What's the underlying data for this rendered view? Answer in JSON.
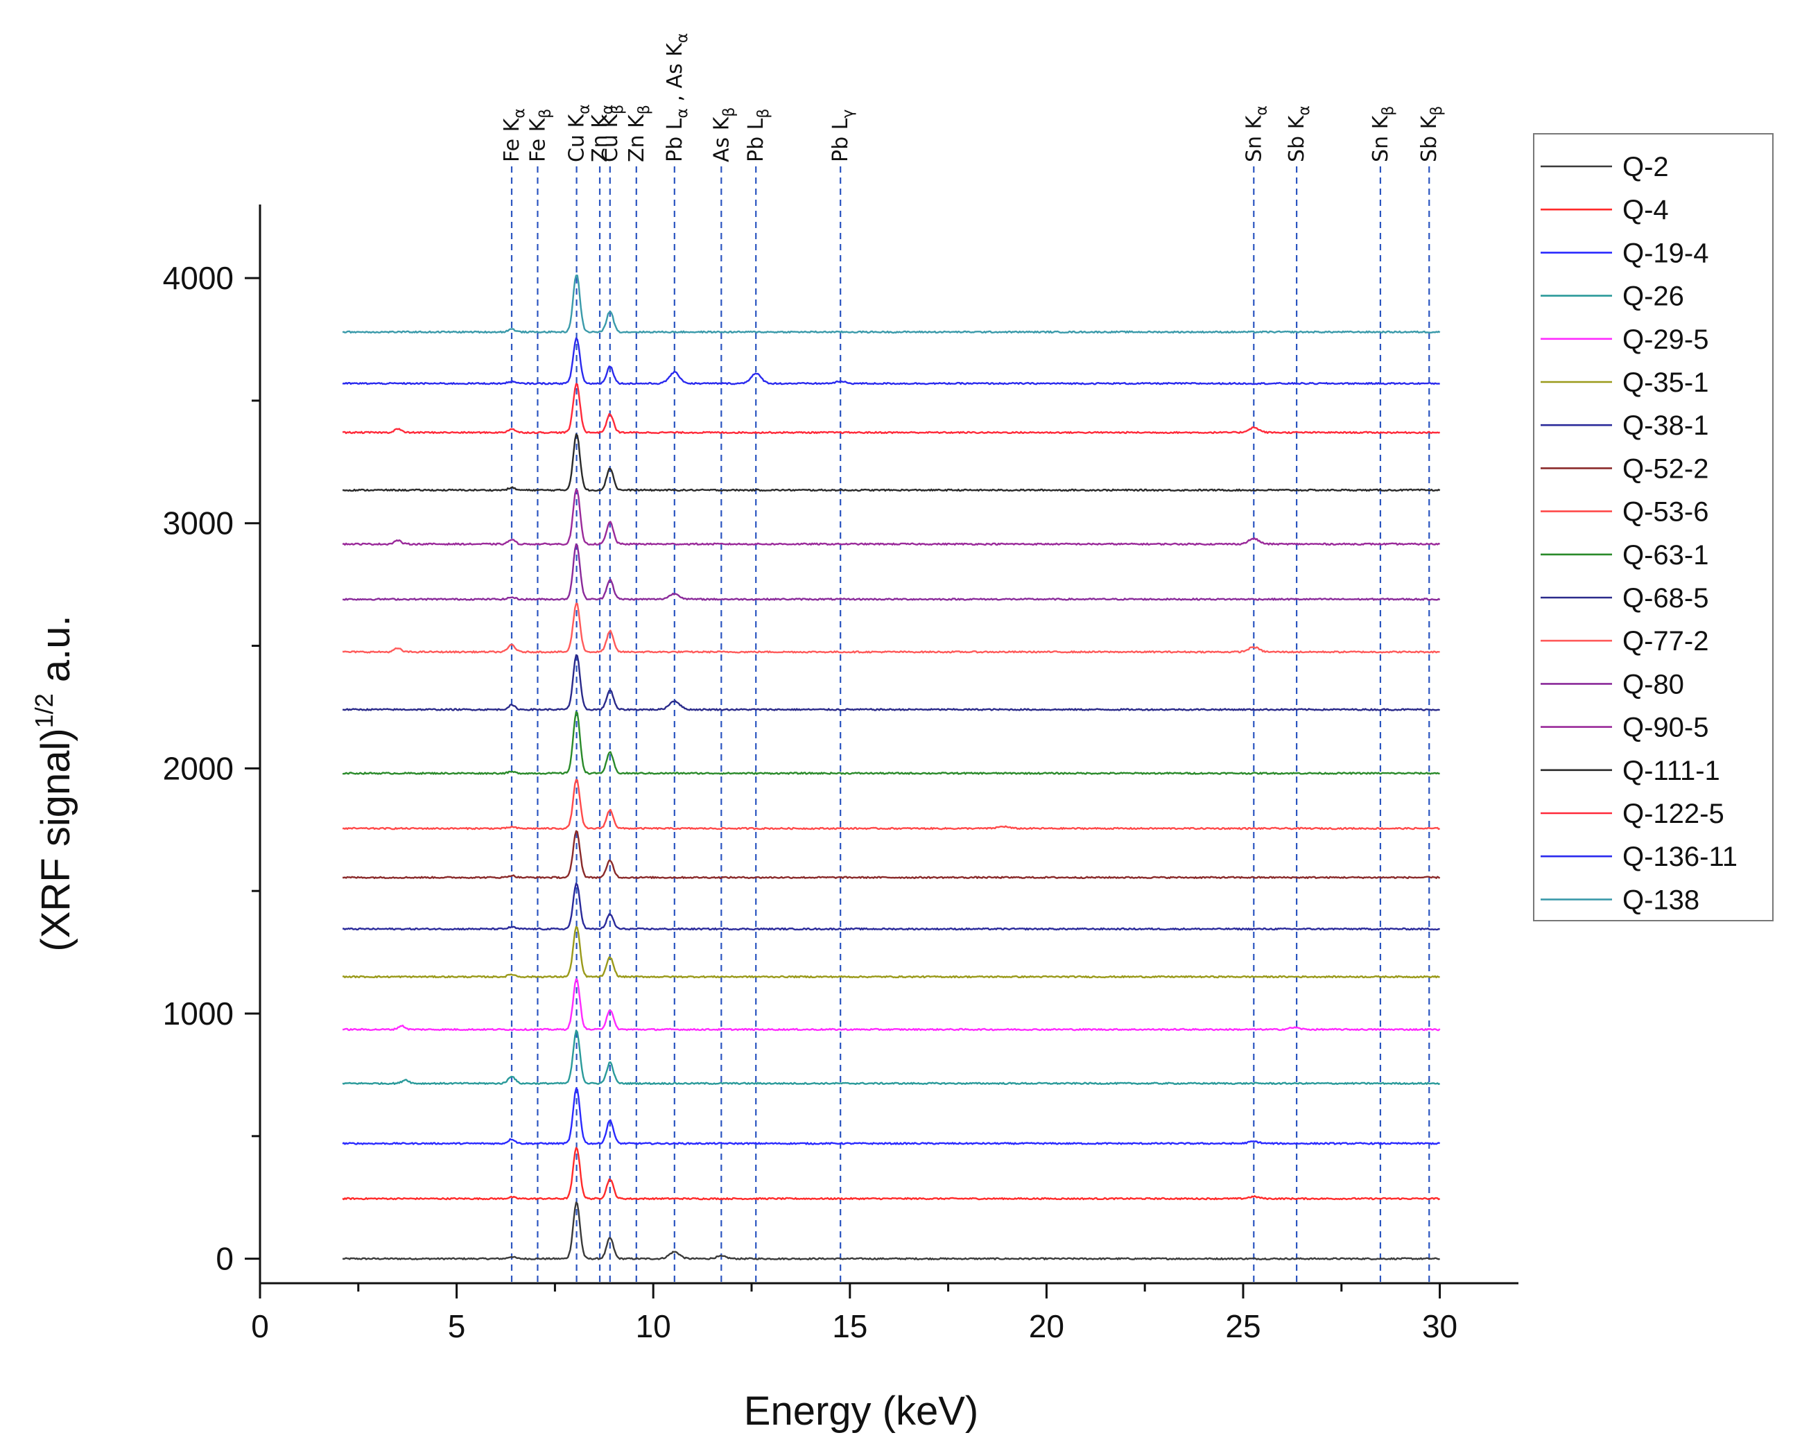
{
  "chart_data": {
    "type": "line",
    "title": "",
    "xlabel": "Energy (keV)",
    "ylabel_prefix": "(XRF signal)",
    "ylabel_sup": "1/2",
    "ylabel_suffix": " a.u.",
    "xlim": [
      0,
      32
    ],
    "ylim": [
      -100,
      4300
    ],
    "x_ticks": [
      0,
      5,
      10,
      15,
      20,
      25,
      30
    ],
    "x_minor_step": 2.5,
    "y_ticks": [
      0,
      1000,
      2000,
      3000,
      4000
    ],
    "y_minor_step": 500,
    "legend_position": "top-right",
    "x_range": [
      2.1,
      30.0
    ],
    "peak_lines": [
      {
        "energy": 6.4,
        "label": "Fe K",
        "sub": "α"
      },
      {
        "energy": 7.06,
        "label": "Fe K",
        "sub": "β"
      },
      {
        "energy": 8.05,
        "label": "Cu K",
        "sub": "α"
      },
      {
        "energy": 8.64,
        "label": "Zn K",
        "sub": "α"
      },
      {
        "energy": 8.9,
        "label": "Cu K",
        "sub": "β"
      },
      {
        "energy": 9.57,
        "label": "Zn K",
        "sub": "β"
      },
      {
        "energy": 10.54,
        "label": "Pb L",
        "sub": "α",
        "extra": " , As K",
        "extra_sub": "α"
      },
      {
        "energy": 11.73,
        "label": "As K",
        "sub": "β"
      },
      {
        "energy": 12.61,
        "label": "Pb L",
        "sub": "β"
      },
      {
        "energy": 14.76,
        "label": "Pb L",
        "sub": "γ"
      },
      {
        "energy": 25.27,
        "label": "Sn K",
        "sub": "α"
      },
      {
        "energy": 26.36,
        "label": "Sb K",
        "sub": "α"
      },
      {
        "energy": 28.49,
        "label": "Sn K",
        "sub": "β"
      },
      {
        "energy": 29.73,
        "label": "Sb K",
        "sub": "β"
      }
    ],
    "series": [
      {
        "name": "Q-2",
        "color": "#3a3a3a",
        "baseline": 0,
        "peaks": [
          [
            8.05,
            230
          ],
          [
            8.9,
            85
          ],
          [
            10.54,
            28
          ],
          [
            11.73,
            10
          ],
          [
            6.4,
            8
          ]
        ]
      },
      {
        "name": "Q-4",
        "color": "#ff2a2a",
        "baseline": 245,
        "peaks": [
          [
            8.05,
            210
          ],
          [
            8.9,
            80
          ],
          [
            6.4,
            6
          ],
          [
            25.27,
            8
          ]
        ]
      },
      {
        "name": "Q-19-4",
        "color": "#2a2aff",
        "baseline": 470,
        "peaks": [
          [
            8.05,
            225
          ],
          [
            8.9,
            95
          ],
          [
            6.4,
            18
          ],
          [
            25.27,
            8
          ]
        ]
      },
      {
        "name": "Q-26",
        "color": "#2a9a9a",
        "baseline": 715,
        "peaks": [
          [
            8.05,
            215
          ],
          [
            8.9,
            85
          ],
          [
            6.4,
            30
          ],
          [
            3.7,
            15
          ]
        ]
      },
      {
        "name": "Q-29-5",
        "color": "#ff2aff",
        "baseline": 935,
        "peaks": [
          [
            8.05,
            205
          ],
          [
            8.9,
            80
          ],
          [
            3.6,
            15
          ],
          [
            26.3,
            8
          ]
        ]
      },
      {
        "name": "Q-35-1",
        "color": "#9a9a1a",
        "baseline": 1150,
        "peaks": [
          [
            8.05,
            205
          ],
          [
            8.9,
            80
          ],
          [
            6.4,
            10
          ]
        ]
      },
      {
        "name": "Q-38-1",
        "color": "#2a2a9a",
        "baseline": 1345,
        "peaks": [
          [
            8.05,
            185
          ],
          [
            8.9,
            60
          ],
          [
            6.4,
            8
          ]
        ]
      },
      {
        "name": "Q-52-2",
        "color": "#8a2a2a",
        "baseline": 1555,
        "peaks": [
          [
            8.05,
            190
          ],
          [
            8.9,
            70
          ],
          [
            6.4,
            8
          ]
        ]
      },
      {
        "name": "Q-53-6",
        "color": "#ff4a4a",
        "baseline": 1755,
        "peaks": [
          [
            8.05,
            200
          ],
          [
            8.9,
            75
          ],
          [
            6.4,
            6
          ],
          [
            18.9,
            8
          ]
        ]
      },
      {
        "name": "Q-63-1",
        "color": "#2a8a2a",
        "baseline": 1980,
        "peaks": [
          [
            8.05,
            250
          ],
          [
            8.9,
            85
          ],
          [
            6.4,
            6
          ]
        ]
      },
      {
        "name": "Q-68-5",
        "color": "#2a2a8a",
        "baseline": 2240,
        "peaks": [
          [
            8.05,
            225
          ],
          [
            8.9,
            80
          ],
          [
            10.54,
            35
          ],
          [
            6.4,
            18
          ]
        ]
      },
      {
        "name": "Q-77-2",
        "color": "#ff5a5a",
        "baseline": 2475,
        "peaks": [
          [
            8.05,
            200
          ],
          [
            8.9,
            85
          ],
          [
            6.4,
            30
          ],
          [
            3.5,
            15
          ],
          [
            25.27,
            20
          ]
        ]
      },
      {
        "name": "Q-80",
        "color": "#8a2a9a",
        "baseline": 2690,
        "peaks": [
          [
            8.05,
            225
          ],
          [
            8.9,
            80
          ],
          [
            10.54,
            22
          ],
          [
            6.4,
            8
          ]
        ]
      },
      {
        "name": "Q-90-5",
        "color": "#9a2a9a",
        "baseline": 2915,
        "peaks": [
          [
            8.05,
            225
          ],
          [
            8.9,
            90
          ],
          [
            6.4,
            18
          ],
          [
            3.5,
            15
          ],
          [
            25.27,
            22
          ]
        ]
      },
      {
        "name": "Q-111-1",
        "color": "#2a2a2a",
        "baseline": 3135,
        "peaks": [
          [
            8.05,
            230
          ],
          [
            8.9,
            90
          ],
          [
            6.4,
            10
          ]
        ]
      },
      {
        "name": "Q-122-5",
        "color": "#ff2a3a",
        "baseline": 3370,
        "peaks": [
          [
            8.05,
            200
          ],
          [
            8.9,
            75
          ],
          [
            6.4,
            15
          ],
          [
            3.5,
            15
          ],
          [
            25.27,
            20
          ]
        ]
      },
      {
        "name": "Q-136-11",
        "color": "#2a2aee",
        "baseline": 3570,
        "peaks": [
          [
            8.05,
            185
          ],
          [
            8.9,
            70
          ],
          [
            10.54,
            45
          ],
          [
            12.61,
            40
          ],
          [
            14.76,
            8
          ],
          [
            6.4,
            8
          ]
        ]
      },
      {
        "name": "Q-138",
        "color": "#3a9aaa",
        "baseline": 3780,
        "peaks": [
          [
            8.05,
            235
          ],
          [
            8.9,
            85
          ],
          [
            6.4,
            12
          ]
        ]
      }
    ]
  }
}
